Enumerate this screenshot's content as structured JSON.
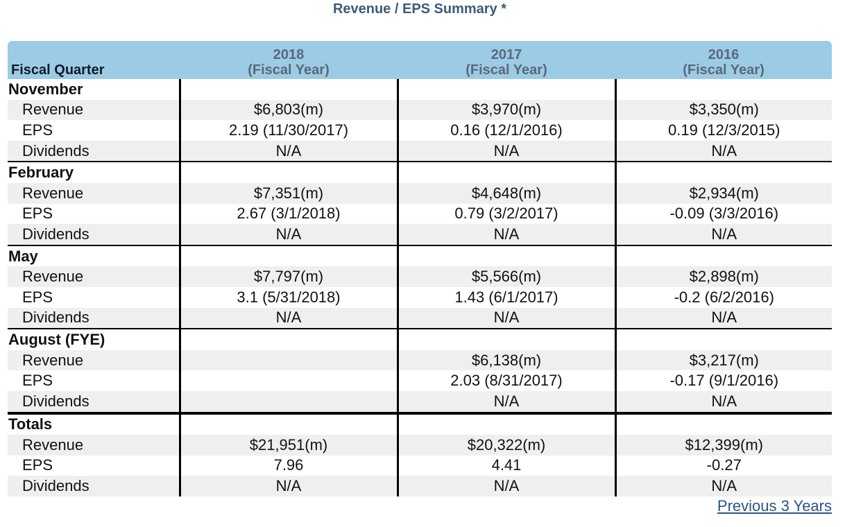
{
  "title": "Revenue / EPS Summary *",
  "header": {
    "col0": "Fiscal Quarter",
    "years": [
      {
        "year": "2018",
        "sub": "(Fiscal Year)"
      },
      {
        "year": "2017",
        "sub": "(Fiscal Year)"
      },
      {
        "year": "2016",
        "sub": "(Fiscal Year)"
      }
    ]
  },
  "groups": [
    {
      "quarter": "November",
      "rows": [
        {
          "label": "Revenue",
          "values": [
            "$6,803(m)",
            "$3,970(m)",
            "$3,350(m)"
          ]
        },
        {
          "label": "EPS",
          "values": [
            "2.19 (11/30/2017)",
            "0.16 (12/1/2016)",
            "0.19 (12/3/2015)"
          ]
        },
        {
          "label": "Dividends",
          "values": [
            "N/A",
            "N/A",
            "N/A"
          ]
        }
      ]
    },
    {
      "quarter": "February",
      "rows": [
        {
          "label": "Revenue",
          "values": [
            "$7,351(m)",
            "$4,648(m)",
            "$2,934(m)"
          ]
        },
        {
          "label": "EPS",
          "values": [
            "2.67 (3/1/2018)",
            "0.79 (3/2/2017)",
            "-0.09 (3/3/2016)"
          ]
        },
        {
          "label": "Dividends",
          "values": [
            "N/A",
            "N/A",
            "N/A"
          ]
        }
      ]
    },
    {
      "quarter": "May",
      "rows": [
        {
          "label": "Revenue",
          "values": [
            "$7,797(m)",
            "$5,566(m)",
            "$2,898(m)"
          ]
        },
        {
          "label": "EPS",
          "values": [
            "3.1 (5/31/2018)",
            "1.43 (6/1/2017)",
            "-0.2 (6/2/2016)"
          ]
        },
        {
          "label": "Dividends",
          "values": [
            "N/A",
            "N/A",
            "N/A"
          ]
        }
      ]
    },
    {
      "quarter": "August  (FYE)",
      "rows": [
        {
          "label": "Revenue",
          "values": [
            "",
            "$6,138(m)",
            "$3,217(m)"
          ]
        },
        {
          "label": "EPS",
          "values": [
            "",
            "2.03 (8/31/2017)",
            "-0.17 (9/1/2016)"
          ]
        },
        {
          "label": "Dividends",
          "values": [
            "",
            "N/A",
            "N/A"
          ]
        }
      ]
    },
    {
      "quarter": "Totals",
      "rows": [
        {
          "label": "Revenue",
          "values": [
            "$21,951(m)",
            "$20,322(m)",
            "$12,399(m)"
          ]
        },
        {
          "label": "EPS",
          "values": [
            "7.96",
            "4.41",
            "-0.27"
          ]
        },
        {
          "label": "Dividends",
          "values": [
            "N/A",
            "N/A",
            "N/A"
          ]
        }
      ]
    }
  ],
  "footer_link": "Previous 3 Years"
}
